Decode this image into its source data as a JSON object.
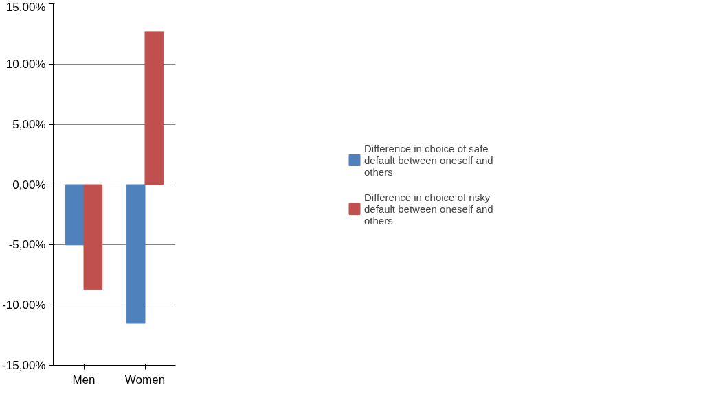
{
  "chart_data": {
    "type": "bar",
    "categories": [
      "Men",
      "Women"
    ],
    "series": [
      {
        "name": "Difference in choice of safe default between oneself and others",
        "color": "#4f81bd",
        "values": [
          -5.0,
          -11.5
        ]
      },
      {
        "name": "Difference in choice of risky default between oneself and others",
        "color": "#c0504d",
        "values": [
          -8.7,
          12.7
        ]
      }
    ],
    "ylim": [
      -15,
      15
    ],
    "yticks": [
      {
        "value": -15,
        "label": "-15,00%"
      },
      {
        "value": -10,
        "label": "-10,00%"
      },
      {
        "value": -5,
        "label": "-5,00%"
      },
      {
        "value": 0,
        "label": "0,00%"
      },
      {
        "value": 5,
        "label": "5,00%"
      },
      {
        "value": 10,
        "label": "10,00%"
      },
      {
        "value": 15,
        "label": "15,00%"
      }
    ],
    "grid": "y",
    "legend": "right"
  }
}
